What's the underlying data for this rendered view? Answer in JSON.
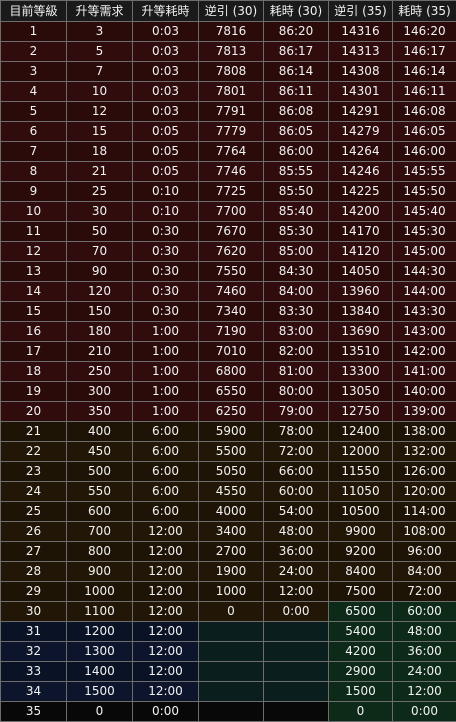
{
  "headers": [
    "目前等級",
    "升等需求",
    "升等耗時",
    "逆引 (30)",
    "耗時 (30)",
    "逆引 (35)",
    "耗時 (35)"
  ],
  "rows": [
    [
      "1",
      "3",
      "0:03",
      "7816",
      "86:20",
      "14316",
      "146:20"
    ],
    [
      "2",
      "5",
      "0:03",
      "7813",
      "86:17",
      "14313",
      "146:17"
    ],
    [
      "3",
      "7",
      "0:03",
      "7808",
      "86:14",
      "14308",
      "146:14"
    ],
    [
      "4",
      "10",
      "0:03",
      "7801",
      "86:11",
      "14301",
      "146:11"
    ],
    [
      "5",
      "12",
      "0:03",
      "7791",
      "86:08",
      "14291",
      "146:08"
    ],
    [
      "6",
      "15",
      "0:05",
      "7779",
      "86:05",
      "14279",
      "146:05"
    ],
    [
      "7",
      "18",
      "0:05",
      "7764",
      "86:00",
      "14264",
      "146:00"
    ],
    [
      "8",
      "21",
      "0:05",
      "7746",
      "85:55",
      "14246",
      "145:55"
    ],
    [
      "9",
      "25",
      "0:10",
      "7725",
      "85:50",
      "14225",
      "145:50"
    ],
    [
      "10",
      "30",
      "0:10",
      "7700",
      "85:40",
      "14200",
      "145:40"
    ],
    [
      "11",
      "50",
      "0:30",
      "7670",
      "85:30",
      "14170",
      "145:30"
    ],
    [
      "12",
      "70",
      "0:30",
      "7620",
      "85:00",
      "14120",
      "145:00"
    ],
    [
      "13",
      "90",
      "0:30",
      "7550",
      "84:30",
      "14050",
      "144:30"
    ],
    [
      "14",
      "120",
      "0:30",
      "7460",
      "84:00",
      "13960",
      "144:00"
    ],
    [
      "15",
      "150",
      "0:30",
      "7340",
      "83:30",
      "13840",
      "143:30"
    ],
    [
      "16",
      "180",
      "1:00",
      "7190",
      "83:00",
      "13690",
      "143:00"
    ],
    [
      "17",
      "210",
      "1:00",
      "7010",
      "82:00",
      "13510",
      "142:00"
    ],
    [
      "18",
      "250",
      "1:00",
      "6800",
      "81:00",
      "13300",
      "141:00"
    ],
    [
      "19",
      "300",
      "1:00",
      "6550",
      "80:00",
      "13050",
      "140:00"
    ],
    [
      "20",
      "350",
      "1:00",
      "6250",
      "79:00",
      "12750",
      "139:00"
    ],
    [
      "21",
      "400",
      "6:00",
      "5900",
      "78:00",
      "12400",
      "138:00"
    ],
    [
      "22",
      "450",
      "6:00",
      "5500",
      "72:00",
      "12000",
      "132:00"
    ],
    [
      "23",
      "500",
      "6:00",
      "5050",
      "66:00",
      "11550",
      "126:00"
    ],
    [
      "24",
      "550",
      "6:00",
      "4550",
      "60:00",
      "11050",
      "120:00"
    ],
    [
      "25",
      "600",
      "6:00",
      "4000",
      "54:00",
      "10500",
      "114:00"
    ],
    [
      "26",
      "700",
      "12:00",
      "3400",
      "48:00",
      "9900",
      "108:00"
    ],
    [
      "27",
      "800",
      "12:00",
      "2700",
      "36:00",
      "9200",
      "96:00"
    ],
    [
      "28",
      "900",
      "12:00",
      "1900",
      "24:00",
      "8400",
      "84:00"
    ],
    [
      "29",
      "1000",
      "12:00",
      "1000",
      "12:00",
      "7500",
      "72:00"
    ],
    [
      "30",
      "1100",
      "12:00",
      "0",
      "0:00",
      "6500",
      "60:00"
    ],
    [
      "31",
      "1200",
      "12:00",
      "",
      "",
      "5400",
      "48:00"
    ],
    [
      "32",
      "1300",
      "12:00",
      "",
      "",
      "4200",
      "36:00"
    ],
    [
      "33",
      "1400",
      "12:00",
      "",
      "",
      "2900",
      "24:00"
    ],
    [
      "34",
      "1500",
      "12:00",
      "",
      "",
      "1500",
      "12:00"
    ],
    [
      "35",
      "0",
      "0:00",
      "",
      "",
      "0",
      "0:00"
    ]
  ]
}
